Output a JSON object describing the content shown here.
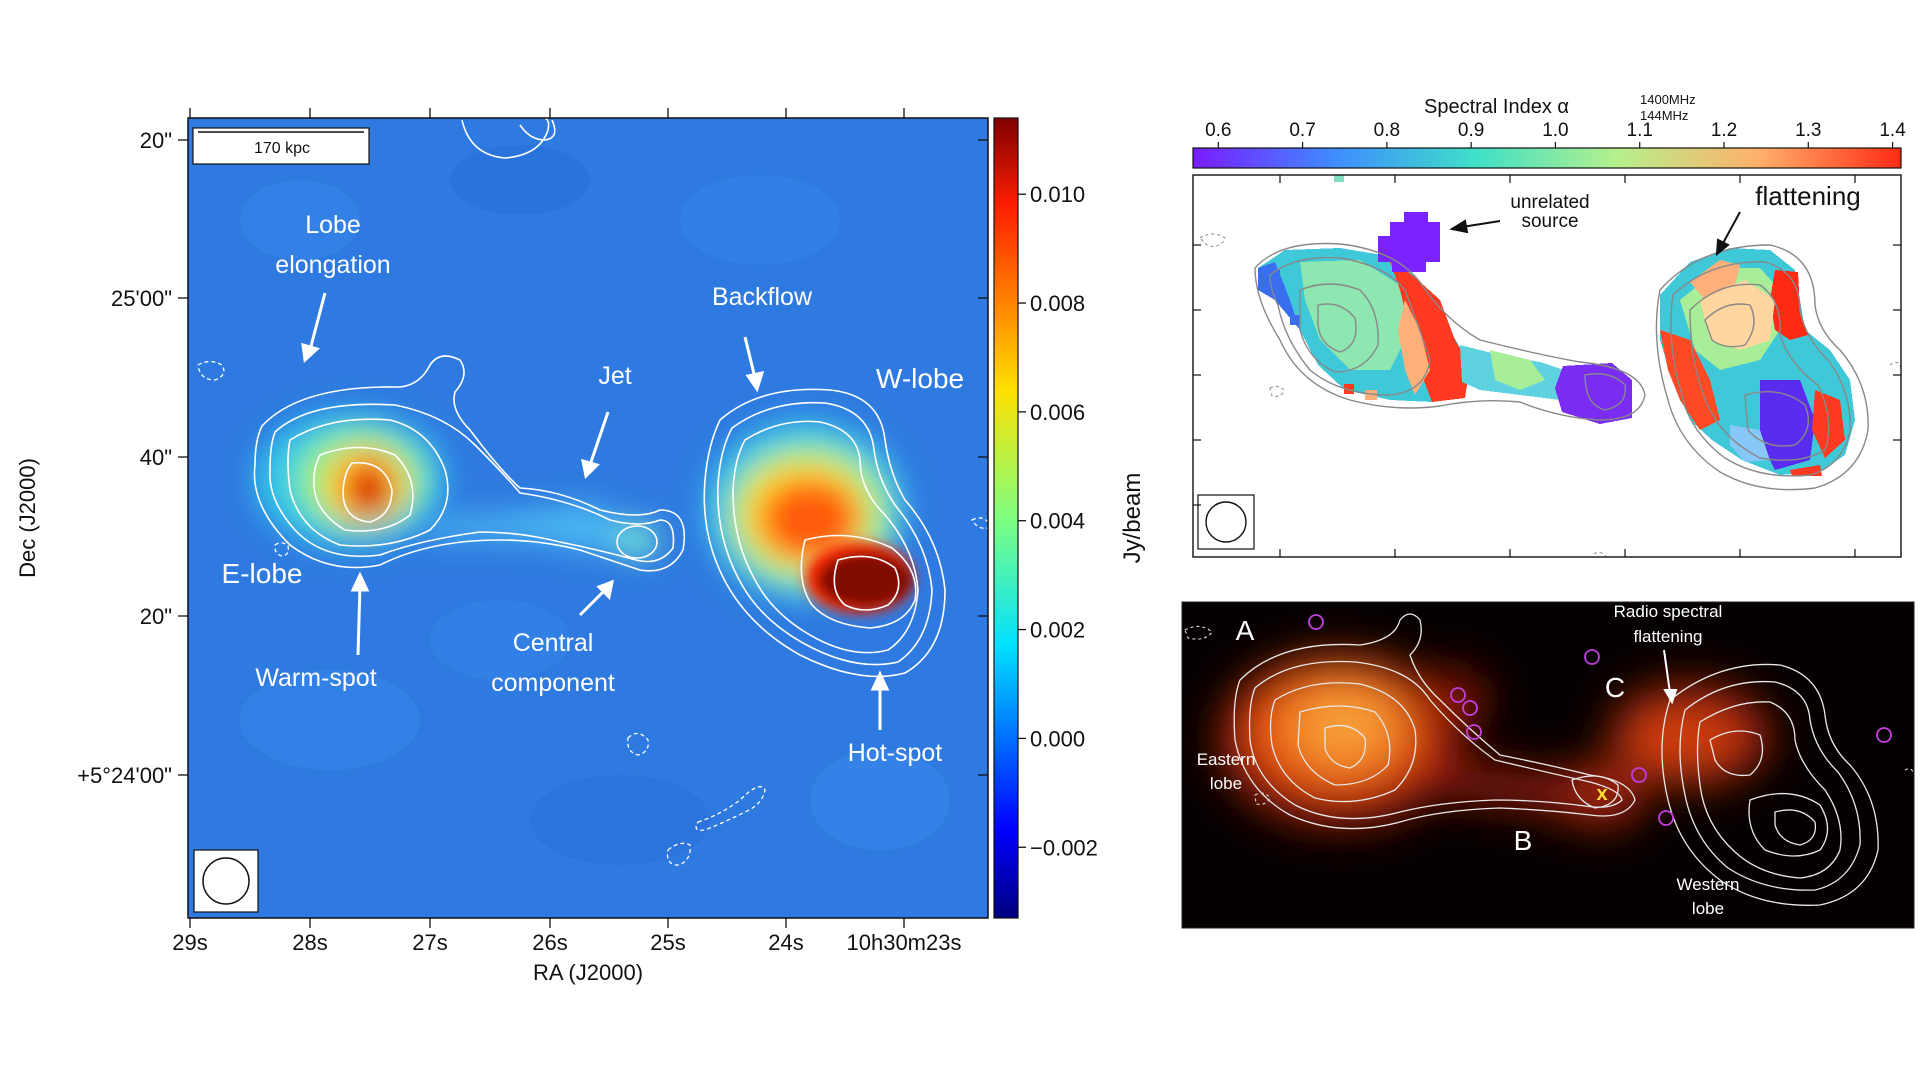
{
  "chart_data": [
    {
      "type": "heatmap",
      "xlabel": "RA (J2000)",
      "ylabel": "Dec (J2000)",
      "colorbar_label": "Jy/beam",
      "x_ticks": [
        "29s",
        "28s",
        "27s",
        "26s",
        "25s",
        "24s",
        "10h30m23s"
      ],
      "y_ticks": [
        "20\"",
        "25'00\"",
        "40\"",
        "20\"",
        "+5°24'00\""
      ],
      "colorbar_ticks": [
        {
          "label": "0.010",
          "value": 0.01
        },
        {
          "label": "0.008",
          "value": 0.008
        },
        {
          "label": "0.006",
          "value": 0.006
        },
        {
          "label": "0.004",
          "value": 0.004
        },
        {
          "label": "0.002",
          "value": 0.002
        },
        {
          "label": "0.000",
          "value": 0.0
        },
        {
          "label": "−0.002",
          "value": -0.002
        }
      ],
      "colorbar_range": [
        -0.0033,
        0.0114
      ],
      "colormap": "jet",
      "scalebar_label": "170 kpc",
      "annotations": [
        {
          "id": "lobe-elongation",
          "lines": [
            "Lobe",
            "elongation"
          ]
        },
        {
          "id": "jet",
          "lines": [
            "Jet"
          ]
        },
        {
          "id": "backflow",
          "lines": [
            "Backflow"
          ]
        },
        {
          "id": "w-lobe",
          "lines": [
            "W-lobe"
          ]
        },
        {
          "id": "e-lobe",
          "lines": [
            "E-lobe"
          ]
        },
        {
          "id": "warm-spot",
          "lines": [
            "Warm-spot"
          ]
        },
        {
          "id": "central-component",
          "lines": [
            "Central",
            "component"
          ]
        },
        {
          "id": "hot-spot",
          "lines": [
            "Hot-spot"
          ]
        }
      ]
    },
    {
      "type": "heatmap",
      "colorbar_title": "Spectral Index α",
      "colorbar_sup": "1400MHz",
      "colorbar_sub": "144MHz",
      "colorbar_ticks": [
        {
          "label": "0.6",
          "value": 0.6
        },
        {
          "label": "0.7",
          "value": 0.7
        },
        {
          "label": "0.8",
          "value": 0.8
        },
        {
          "label": "0.9",
          "value": 0.9
        },
        {
          "label": "1.0",
          "value": 1.0
        },
        {
          "label": "1.1",
          "value": 1.1
        },
        {
          "label": "1.2",
          "value": 1.2
        },
        {
          "label": "1.3",
          "value": 1.3
        },
        {
          "label": "1.4",
          "value": 1.4
        }
      ],
      "colorbar_range": [
        0.57,
        1.41
      ],
      "colormap": "rainbow",
      "annotations": [
        {
          "id": "unrelated-source",
          "lines": [
            "unrelated",
            "source"
          ]
        },
        {
          "id": "flattening",
          "lines": [
            "flattening"
          ]
        }
      ]
    },
    {
      "type": "heatmap",
      "colormap": "hot",
      "annotations": [
        {
          "id": "label-a",
          "lines": [
            "A"
          ]
        },
        {
          "id": "label-b",
          "lines": [
            "B"
          ]
        },
        {
          "id": "label-c",
          "lines": [
            "C"
          ]
        },
        {
          "id": "eastern-lobe",
          "lines": [
            "Eastern",
            "lobe"
          ]
        },
        {
          "id": "western-lobe",
          "lines": [
            "Western",
            "lobe"
          ]
        },
        {
          "id": "radio-spectral-flattening",
          "lines": [
            "Radio spectral",
            "flattening"
          ]
        },
        {
          "id": "x-marker",
          "lines": [
            "x"
          ]
        }
      ]
    }
  ]
}
